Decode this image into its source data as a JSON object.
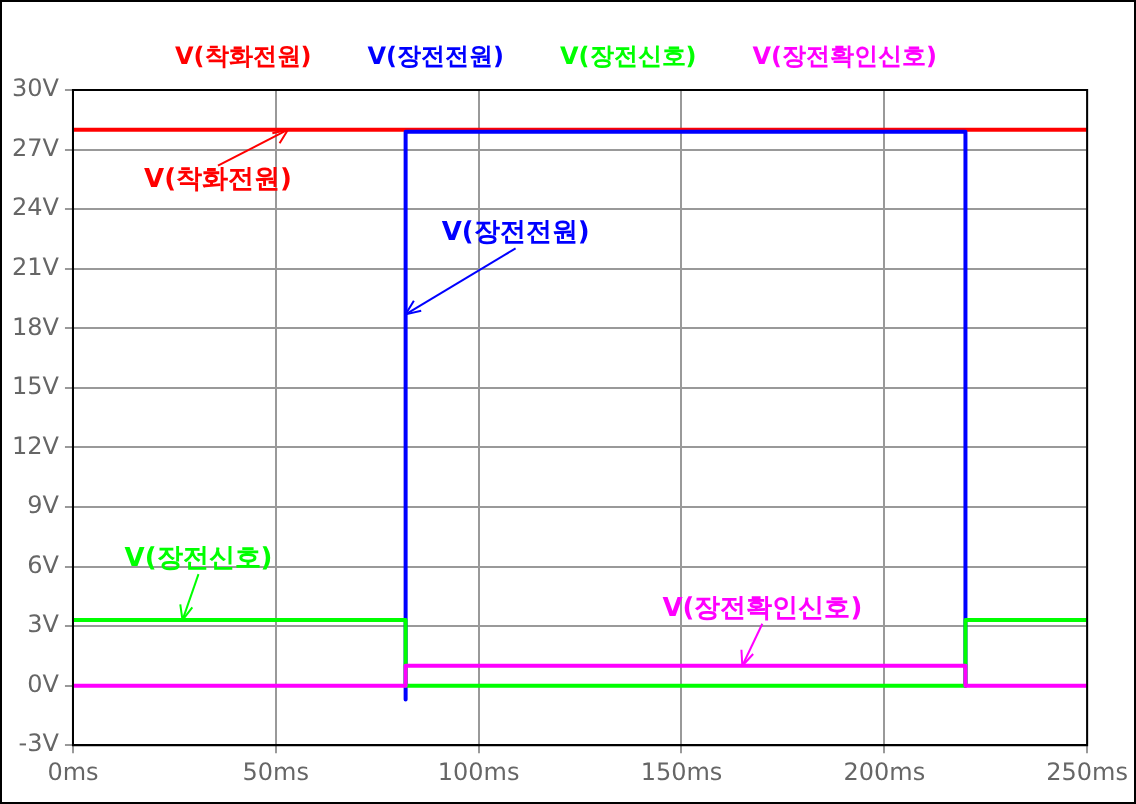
{
  "chart_data": {
    "type": "line",
    "legend": "top",
    "grid": true,
    "marker": "none",
    "line_style": "solid",
    "xlim": [
      0,
      250
    ],
    "xticks": [
      {
        "value": 0,
        "label": "0ms"
      },
      {
        "value": 50,
        "label": "50ms"
      },
      {
        "value": 100,
        "label": "100ms"
      },
      {
        "value": 150,
        "label": "150ms"
      },
      {
        "value": 200,
        "label": "200ms"
      },
      {
        "value": 250,
        "label": "250ms"
      }
    ],
    "ylim": [
      -3,
      30
    ],
    "yticks": [
      {
        "value": -3,
        "label": "-3V"
      },
      {
        "value": 0,
        "label": "0V"
      },
      {
        "value": 3,
        "label": "3V"
      },
      {
        "value": 6,
        "label": "6V"
      },
      {
        "value": 9,
        "label": "9V"
      },
      {
        "value": 12,
        "label": "12V"
      },
      {
        "value": 15,
        "label": "15V"
      },
      {
        "value": 18,
        "label": "18V"
      },
      {
        "value": 21,
        "label": "21V"
      },
      {
        "value": 24,
        "label": "24V"
      },
      {
        "value": 27,
        "label": "27V"
      },
      {
        "value": 30,
        "label": "30V"
      }
    ],
    "series": [
      {
        "name": "V(착화전원)",
        "color": "#ff0000",
        "x": [
          0,
          250
        ],
        "values": [
          28,
          28
        ]
      },
      {
        "name": "V(장전전원)",
        "color": "#0000ff",
        "x": [
          82,
          82,
          82,
          220,
          220
        ],
        "values": [
          0,
          -0.7,
          27.9,
          27.9,
          0
        ]
      },
      {
        "name": "V(장전신호)",
        "color": "#00ff00",
        "x": [
          0,
          82,
          82,
          220,
          220,
          250
        ],
        "values": [
          3.3,
          3.3,
          0,
          0,
          3.3,
          3.3
        ]
      },
      {
        "name": "V(장전확인신호)",
        "color": "#ff00ff",
        "x": [
          0,
          82,
          82,
          220,
          220,
          250
        ],
        "values": [
          0,
          0,
          1,
          1,
          0,
          0
        ]
      }
    ],
    "annotations": [
      {
        "text": "V(착화전원)",
        "x": 53,
        "y": 28
      },
      {
        "text": "V(장전전원)",
        "x": 82,
        "y": 18.7
      },
      {
        "text": "V(장전신호)",
        "x": 27,
        "y": 3.3
      },
      {
        "text": "V(장전확인신호)",
        "x": 165,
        "y": 1
      }
    ]
  }
}
